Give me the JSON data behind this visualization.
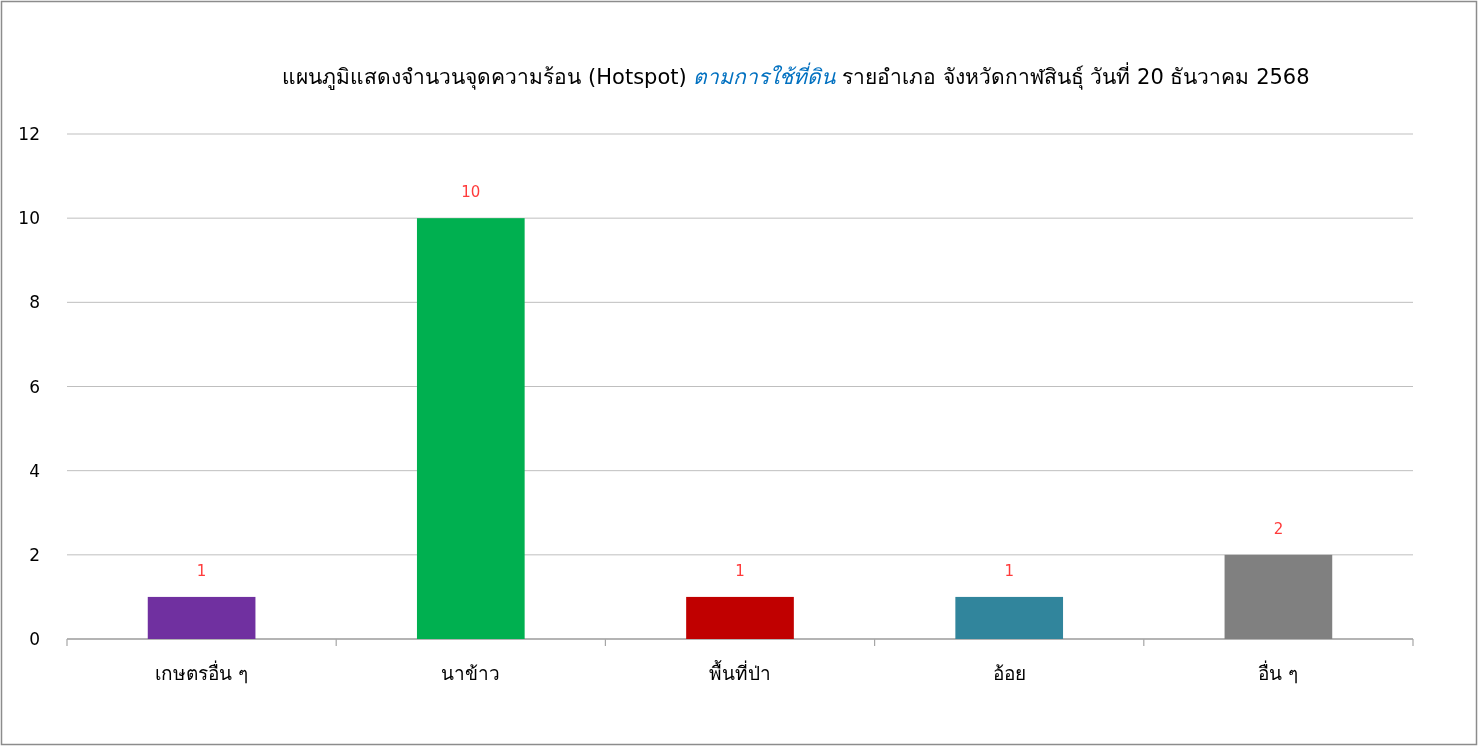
{
  "chart_data": {
    "type": "bar",
    "title": "แผนภูมิแสดงจำนวนจุดความร้อน (Hotspot) *ตามการใช้ที่ดิน* รายอำเภอ จังหวัดกาฬสินธุ์ วันที่ 20 ธันวาคม 2568",
    "categories": [
      "เกษตรอื่น ๆ",
      "นาข้าว",
      "พื้นที่ป่า",
      "อ้อย",
      "อื่น ๆ"
    ],
    "values": [
      1,
      10,
      1,
      1,
      2
    ],
    "colors": [
      "#7030a0",
      "#00b050",
      "#c00000",
      "#31859c",
      "#808080"
    ],
    "ylim": [
      0,
      12
    ],
    "yticks": [
      0,
      2,
      4,
      6,
      8,
      10,
      12
    ],
    "grid": "y",
    "data_labels": true
  }
}
